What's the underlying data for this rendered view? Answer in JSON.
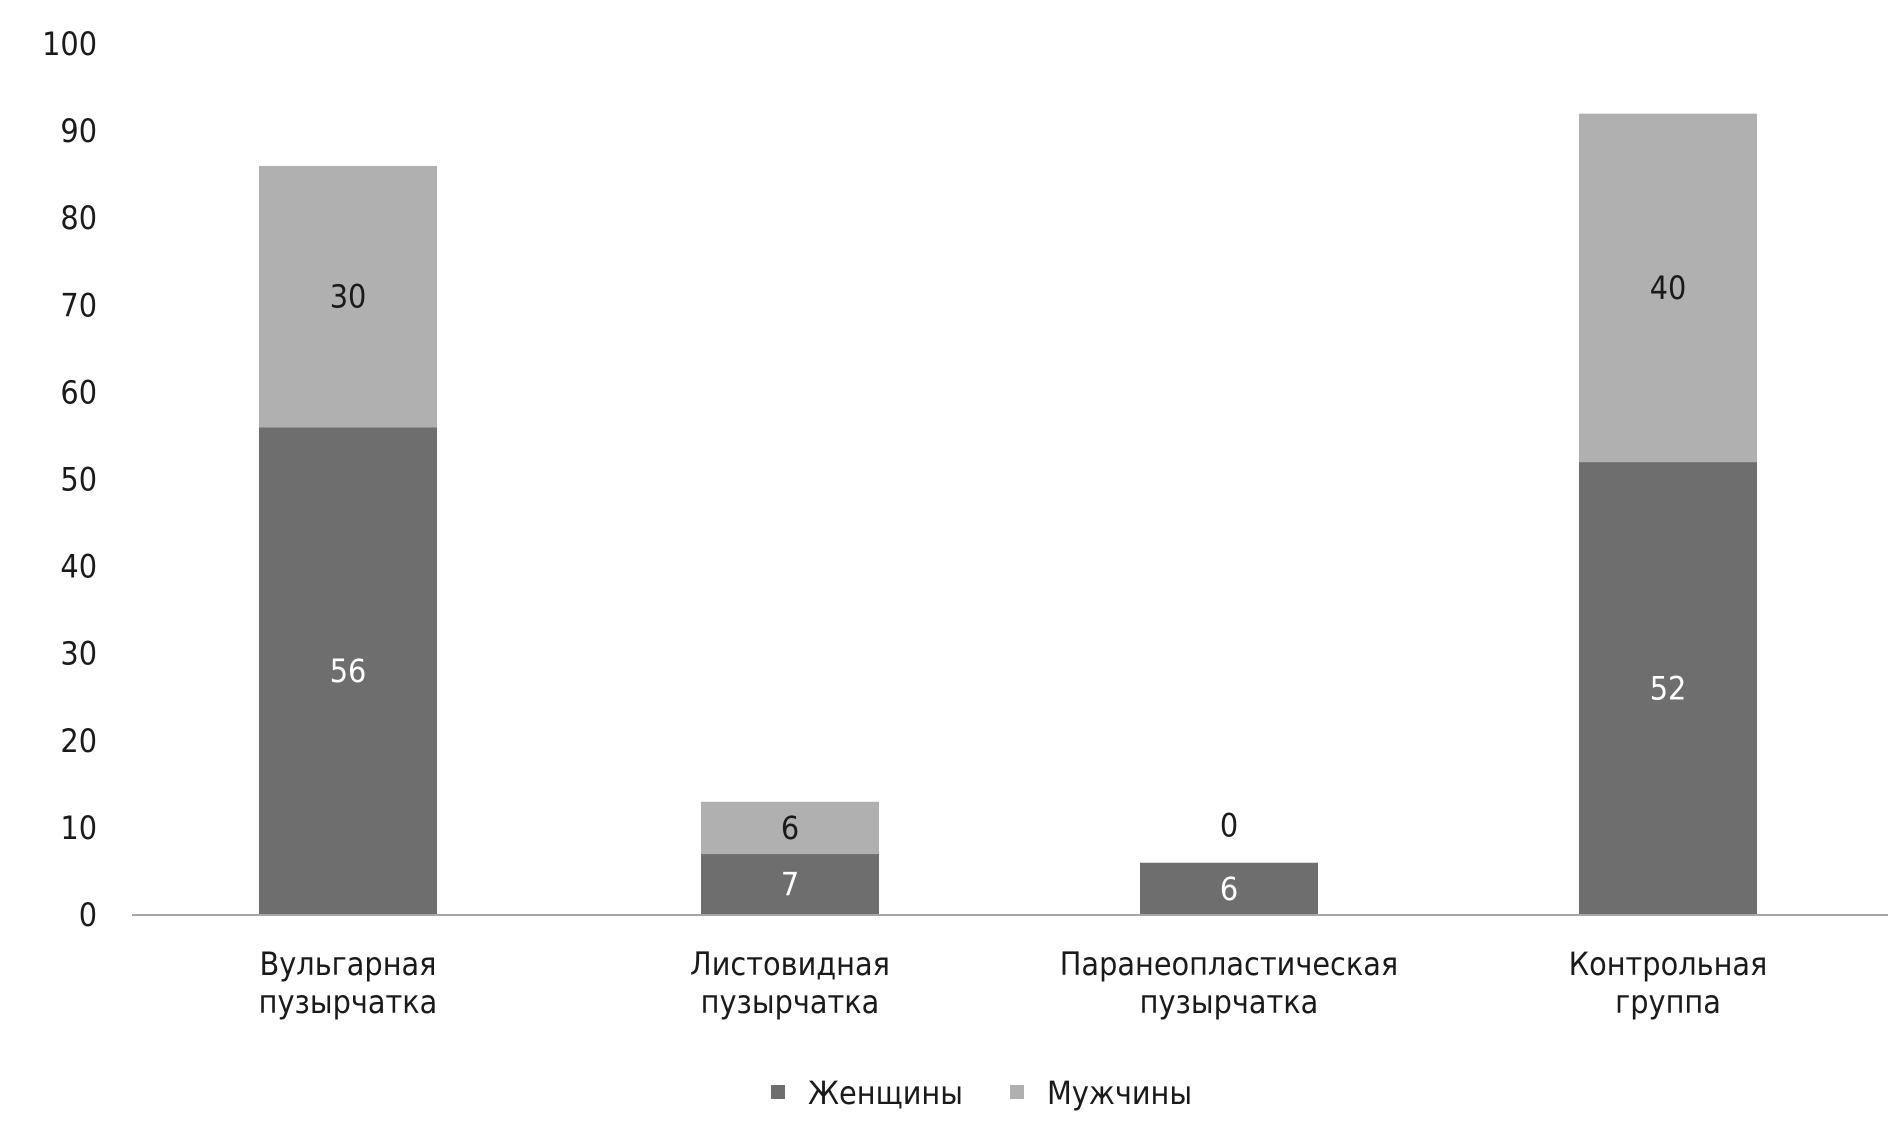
{
  "chart_data": {
    "type": "bar",
    "stacked": true,
    "categories": [
      [
        "Вульгарная",
        "пузырчатка"
      ],
      [
        "Листовидная",
        "пузырчатка"
      ],
      [
        "Паранеопластическая",
        "пузырчатка"
      ],
      [
        "Контрольная",
        "группа"
      ]
    ],
    "series": [
      {
        "name": "Женщины",
        "color": "#6f6e6e",
        "label_color": "#ffffff",
        "values": [
          56,
          7,
          6,
          52
        ]
      },
      {
        "name": "Мужчины",
        "color": "#b1b0b0",
        "label_color": "#1a1a1a",
        "values": [
          30,
          6,
          0,
          40
        ]
      }
    ],
    "ylim": [
      0,
      100
    ],
    "yticks": [
      0,
      10,
      20,
      30,
      40,
      50,
      60,
      70,
      80,
      90,
      100
    ],
    "grid": false,
    "legend_position": "bottom-center",
    "axis_color": "#a6a6a6"
  }
}
